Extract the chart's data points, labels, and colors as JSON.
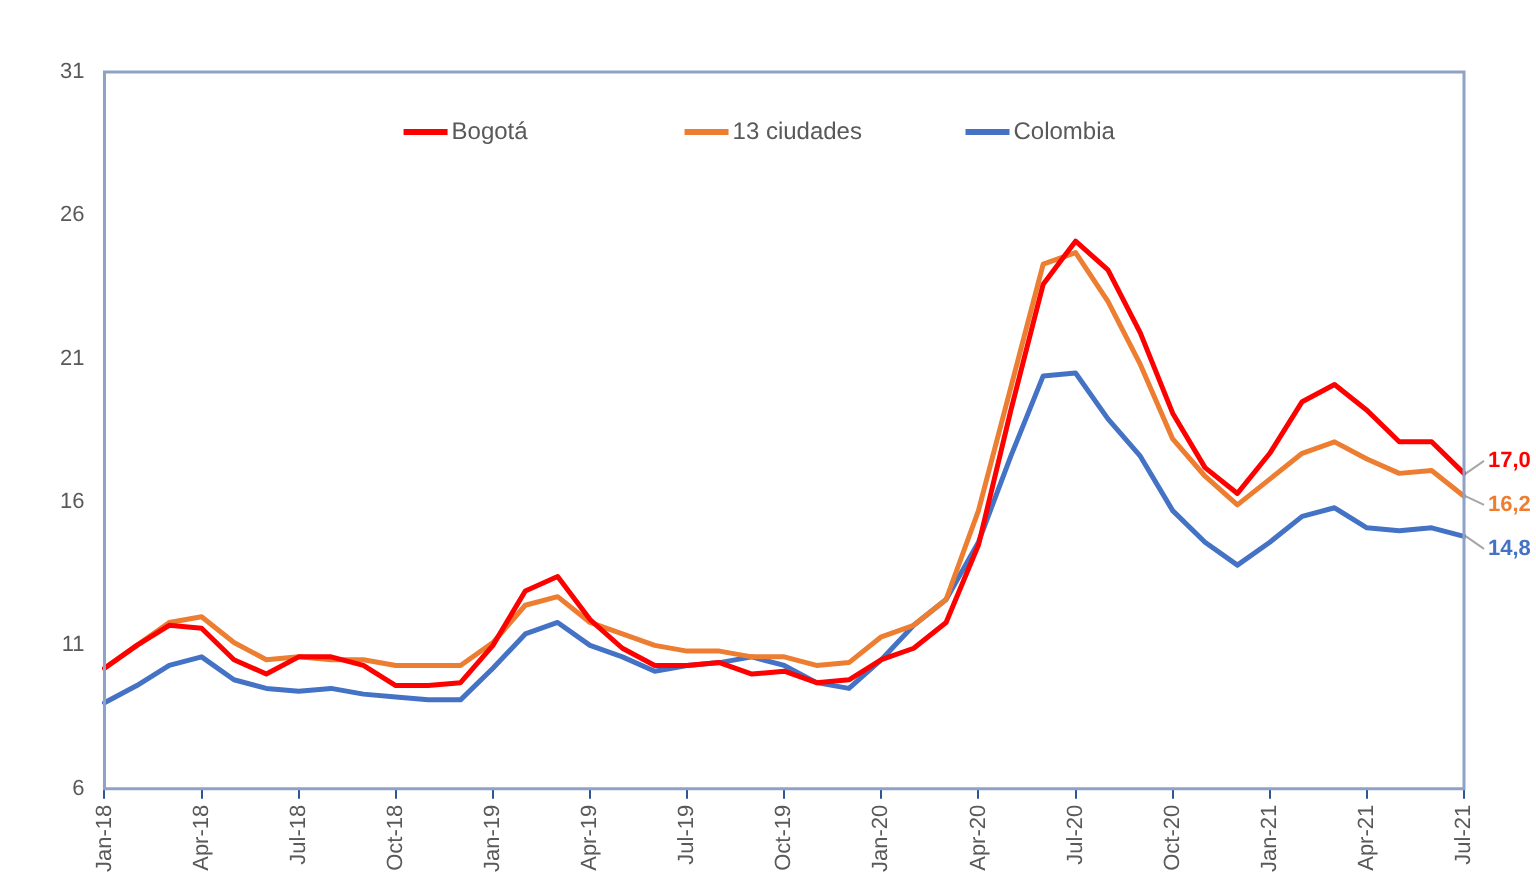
{
  "chart_data": {
    "type": "line",
    "categories": [
      "Jan-18",
      null,
      null,
      "Apr-18",
      null,
      null,
      "Jul-18",
      null,
      null,
      "Oct-18",
      null,
      null,
      "Jan-19",
      null,
      null,
      "Apr-19",
      null,
      null,
      "Jul-19",
      null,
      null,
      "Oct-19",
      null,
      null,
      "Jan-20",
      null,
      null,
      "Apr-20",
      null,
      null,
      "Jul-20",
      null,
      null,
      "Oct-20",
      null,
      null,
      "Jan-21",
      null,
      null,
      "Apr-21",
      null,
      null,
      "Jul-21"
    ],
    "series": [
      {
        "name": "Bogotá",
        "color": "#ff0000",
        "values": [
          10.2,
          11.0,
          11.7,
          11.6,
          10.5,
          10.0,
          10.6,
          10.6,
          10.3,
          9.6,
          9.6,
          9.7,
          11.0,
          12.9,
          13.4,
          11.9,
          10.9,
          10.3,
          10.3,
          10.4,
          10.0,
          10.1,
          9.7,
          9.8,
          10.5,
          10.9,
          11.8,
          14.5,
          19.2,
          23.6,
          25.1,
          24.1,
          21.9,
          19.1,
          17.2,
          16.3,
          17.7,
          19.5,
          20.1,
          19.2,
          18.1,
          18.1,
          17.0
        ],
        "value_labels": [
          null,
          null,
          null,
          null,
          null,
          null,
          null,
          null,
          null,
          null,
          null,
          null,
          null,
          null,
          null,
          null,
          null,
          null,
          null,
          null,
          null,
          null,
          null,
          null,
          null,
          null,
          null,
          null,
          null,
          null,
          null,
          null,
          null,
          null,
          null,
          null,
          null,
          null,
          null,
          null,
          null,
          null,
          "17,0"
        ]
      },
      {
        "name": "13 ciudades",
        "color": "#ed7d31",
        "values": [
          10.2,
          11.0,
          11.8,
          12.0,
          11.1,
          10.5,
          10.6,
          10.5,
          10.5,
          10.3,
          10.3,
          10.3,
          11.1,
          12.4,
          12.7,
          11.8,
          11.4,
          11.0,
          10.8,
          10.8,
          10.6,
          10.6,
          10.3,
          10.4,
          11.3,
          11.7,
          12.6,
          15.7,
          20.0,
          24.3,
          24.7,
          23.0,
          20.8,
          18.2,
          16.9,
          15.9,
          16.8,
          17.7,
          18.1,
          17.5,
          17.0,
          17.1,
          16.2
        ],
        "value_labels": [
          null,
          null,
          null,
          null,
          null,
          null,
          null,
          null,
          null,
          null,
          null,
          null,
          null,
          null,
          null,
          null,
          null,
          null,
          null,
          null,
          null,
          null,
          null,
          null,
          null,
          null,
          null,
          null,
          null,
          null,
          null,
          null,
          null,
          null,
          null,
          null,
          null,
          null,
          null,
          null,
          null,
          null,
          "16,2"
        ]
      },
      {
        "name": "Colombia",
        "color": "#4472c4",
        "values": [
          9.0,
          9.6,
          10.3,
          10.6,
          9.8,
          9.5,
          9.4,
          9.5,
          9.3,
          9.2,
          9.1,
          9.1,
          10.2,
          11.4,
          11.8,
          11.0,
          10.6,
          10.1,
          10.3,
          10.4,
          10.6,
          10.3,
          9.7,
          9.5,
          10.5,
          11.7,
          12.6,
          14.6,
          17.6,
          20.4,
          20.5,
          18.9,
          17.6,
          15.7,
          14.6,
          13.8,
          14.6,
          15.5,
          15.8,
          15.1,
          15.0,
          15.1,
          14.8
        ],
        "value_labels": [
          null,
          null,
          null,
          null,
          null,
          null,
          null,
          null,
          null,
          null,
          null,
          null,
          null,
          null,
          null,
          null,
          null,
          null,
          null,
          null,
          null,
          null,
          null,
          null,
          null,
          null,
          null,
          null,
          null,
          null,
          null,
          null,
          null,
          null,
          null,
          null,
          null,
          null,
          null,
          null,
          null,
          null,
          "14,8"
        ]
      }
    ],
    "ylim": [
      6,
      31
    ],
    "yticks": [
      6,
      11,
      16,
      21,
      26,
      31
    ],
    "grid": false,
    "legend": "top",
    "marker": "none",
    "line_style": "solid"
  }
}
